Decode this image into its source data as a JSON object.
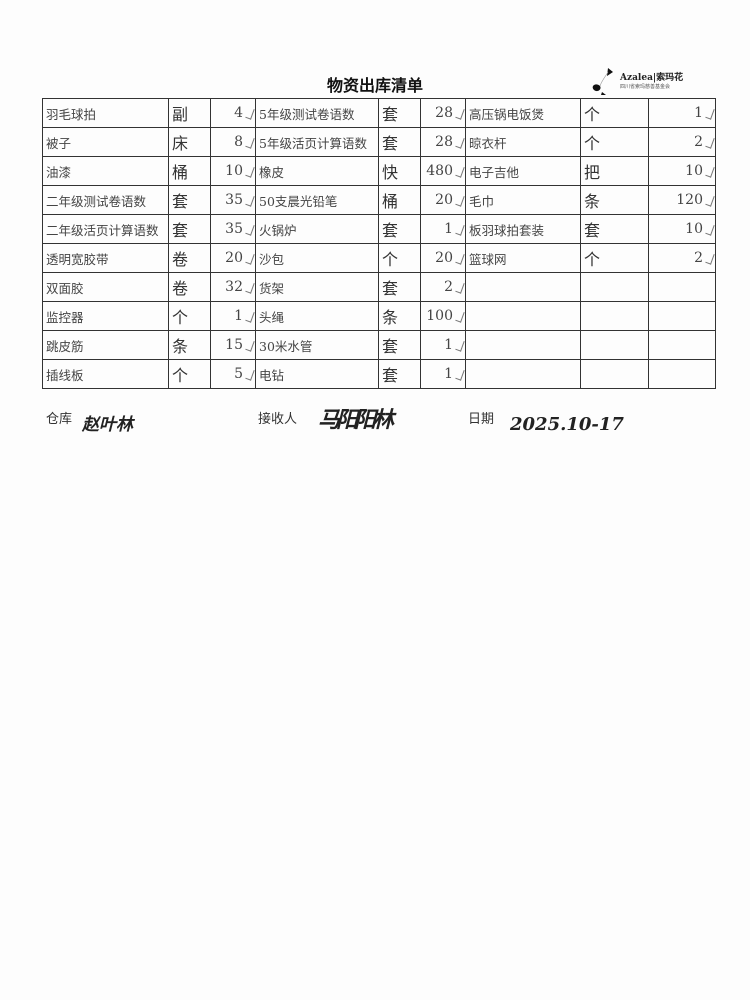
{
  "document": {
    "title": "物资出库清单",
    "logo": {
      "name": "Azalea|索玛花",
      "subtitle": "四川省索玛慈善基金会"
    },
    "rows": [
      [
        [
          "羽毛球拍",
          "副",
          "4"
        ],
        [
          "5年级测试卷语数",
          "套",
          "28"
        ],
        [
          "高压锅电饭煲",
          "个",
          "1"
        ]
      ],
      [
        [
          "被子",
          "床",
          "8"
        ],
        [
          "5年级活页计算语数",
          "套",
          "28"
        ],
        [
          "晾衣杆",
          "个",
          "2"
        ]
      ],
      [
        [
          "油漆",
          "桶",
          "10"
        ],
        [
          "橡皮",
          "快",
          "480"
        ],
        [
          "电子吉他",
          "把",
          "10"
        ]
      ],
      [
        [
          "二年级测试卷语数",
          "套",
          "35"
        ],
        [
          "50支晨光铅笔",
          "桶",
          "20"
        ],
        [
          "毛巾",
          "条",
          "120"
        ]
      ],
      [
        [
          "二年级活页计算语数",
          "套",
          "35"
        ],
        [
          "火锅炉",
          "套",
          "1"
        ],
        [
          "板羽球拍套装",
          "套",
          "10"
        ]
      ],
      [
        [
          "透明宽胶带",
          "卷",
          "20"
        ],
        [
          "沙包",
          "个",
          "20"
        ],
        [
          "篮球网",
          "个",
          "2"
        ]
      ],
      [
        [
          "双面胶",
          "卷",
          "32"
        ],
        [
          "货架",
          "套",
          "2"
        ],
        [
          "",
          "",
          ""
        ]
      ],
      [
        [
          "监控器",
          "个",
          "1"
        ],
        [
          "头绳",
          "条",
          "100"
        ],
        [
          "",
          "",
          ""
        ]
      ],
      [
        [
          "跳皮筋",
          "条",
          "15"
        ],
        [
          "30米水管",
          "套",
          "1"
        ],
        [
          "",
          "",
          ""
        ]
      ],
      [
        [
          "插线板",
          "个",
          "5"
        ],
        [
          "电钻",
          "套",
          "1"
        ],
        [
          "",
          "",
          ""
        ]
      ]
    ],
    "footer": {
      "warehouse_label": "仓库",
      "warehouse_signature": "赵叶林",
      "receiver_label": "接收人",
      "receiver_signature": "马阳阳林",
      "date_label": "日期",
      "date_value": "2025.10-17"
    }
  }
}
